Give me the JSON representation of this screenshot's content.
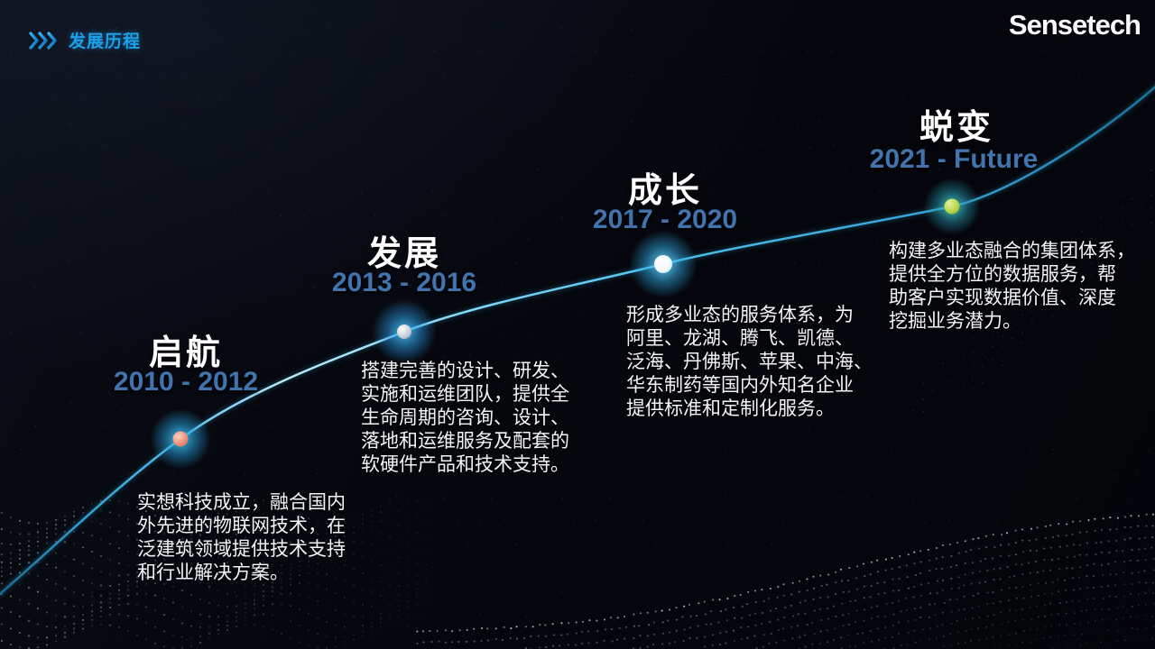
{
  "header": {
    "icon": "chevrons-right-icon",
    "title": "发展历程"
  },
  "logo": {
    "text": "Sensetech"
  },
  "timeline": {
    "milestones": [
      {
        "title": "启航",
        "years": "2010 - 2012",
        "description": [
          "实想科技成立，融合国内",
          "外先进的物联网技术，在",
          "泛建筑领域提供技术支持",
          "和行业解决方案。"
        ],
        "dot_color": "#ef8f79",
        "glow_color": "#3ebef0"
      },
      {
        "title": "发展",
        "years": "2013 - 2016",
        "description": [
          "搭建完善的设计、研发、",
          "实施和运维团队，提供全",
          "生命周期的咨询、设计、",
          "落地和运维服务及配套的",
          "软硬件产品和技术支持。"
        ],
        "dot_color": "#c8d2d8",
        "glow_color": "#46b4f0"
      },
      {
        "title": "成长",
        "years": "2017 - 2020",
        "description": [
          "形成多业态的服务体系，为",
          "阿里、龙湖、腾飞、凯德、",
          "泛海、丹佛斯、苹果、中海、",
          "华东制药等国内外知名企业",
          "提供标准和定制化服务。"
        ],
        "dot_color": "#ffffff",
        "glow_color": "#5fd2f8"
      },
      {
        "title": "蜕变",
        "years": "2021 - Future",
        "description": [
          "构建多业态融合的集团体系，",
          "提供全方位的数据服务，帮",
          "助客户实现数据价值、深度",
          "挖掘业务潜力。"
        ],
        "dot_color": "#b9d74b",
        "glow_color": "#42c8be"
      }
    ]
  },
  "colors": {
    "background": "#05060b",
    "accent_blue": "#1da0e8",
    "year_blue": "#4273ac",
    "line_cyan": "#49c3f0",
    "text_white": "#f3f5f7"
  }
}
